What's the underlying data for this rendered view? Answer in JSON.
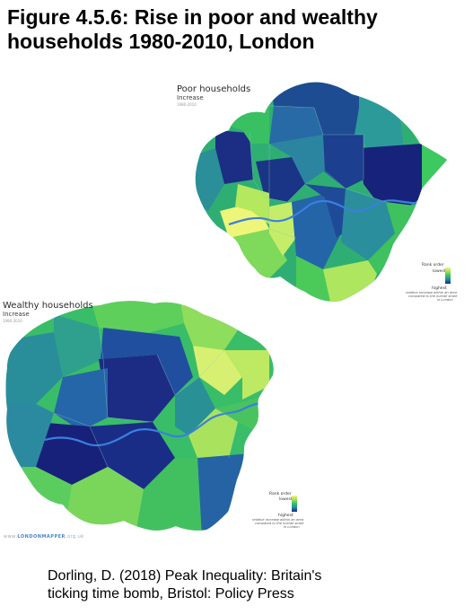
{
  "figure": {
    "title_line1": "Figure 4.5.6: Rise in poor and wealthy",
    "title_line2": "households 1980-2010, London"
  },
  "maps": {
    "poor": {
      "title": "Poor households",
      "subtitle": "Increase",
      "years": "1980-2010"
    },
    "wealthy": {
      "title": "Wealthy households",
      "subtitle": "Increase",
      "years": "1980-2010"
    }
  },
  "legend": {
    "rank_label": "Rank order",
    "lowest_label": "lowest",
    "highest_label": "highest",
    "note_line1": "relative increase within an area",
    "note_line2": "compared to the overall share",
    "note_line3": "in London",
    "scale_colors": [
      "#f0f77a",
      "#9fe05a",
      "#34c06a",
      "#229a92",
      "#1f5fa0",
      "#1b2a82"
    ]
  },
  "brand": {
    "prefix": "www.",
    "name": "LONDONMAPPER",
    "suffix": ".org.uk"
  },
  "citation": {
    "line1": "Dorling, D. (2018) Peak Inequality: Britain's",
    "line2": "ticking time bomb, Bristol: Policy Press"
  }
}
